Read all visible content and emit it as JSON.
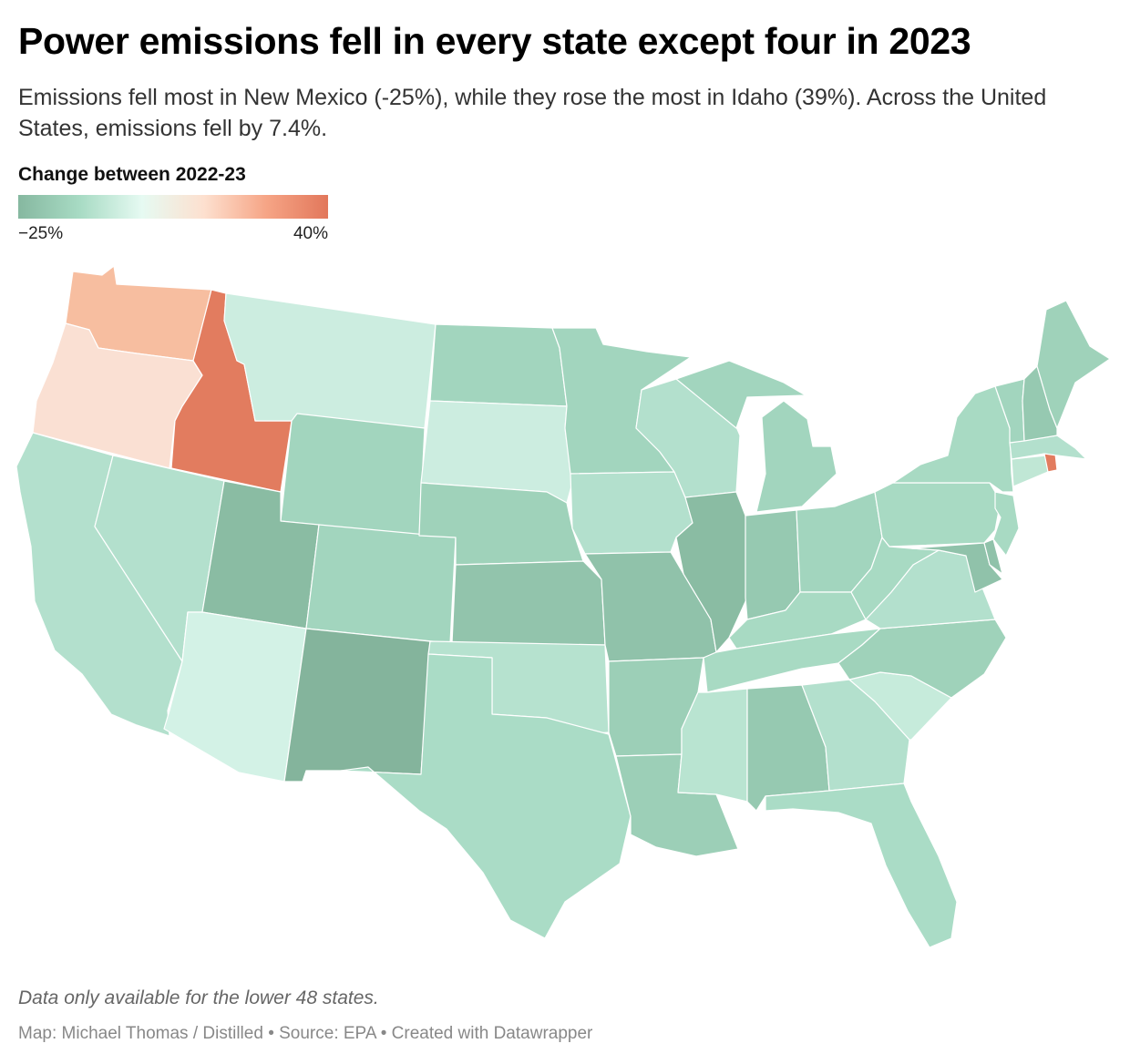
{
  "header": {
    "title": "Power emissions fell in every state except four in 2023",
    "subtitle": "Emissions fell most in New Mexico (-25%), while they rose the most in Idaho (39%). Across the United States, emissions fell by 7.4%."
  },
  "legend": {
    "title": "Change between 2022-23",
    "min_label": "−25%",
    "max_label": "40%",
    "min_value": -25,
    "max_value": 40,
    "colors": [
      "#86b8a0",
      "#a8dbc4",
      "#e6faf2",
      "#fde0cf",
      "#f6a586",
      "#e2775b"
    ]
  },
  "map": {
    "states": [
      {
        "id": "WA",
        "name": "Washington",
        "color": "#f7bea0"
      },
      {
        "id": "OR",
        "name": "Oregon",
        "color": "#fae0d3"
      },
      {
        "id": "CA",
        "name": "California",
        "color": "#b3e0cd"
      },
      {
        "id": "ID",
        "name": "Idaho",
        "color": "#e27c5f"
      },
      {
        "id": "NV",
        "name": "Nevada",
        "color": "#b3e0cd"
      },
      {
        "id": "MT",
        "name": "Montana",
        "color": "#ccede0"
      },
      {
        "id": "WY",
        "name": "Wyoming",
        "color": "#a2d5be"
      },
      {
        "id": "UT",
        "name": "Utah",
        "color": "#8abca3"
      },
      {
        "id": "AZ",
        "name": "Arizona",
        "color": "#d3f2e6"
      },
      {
        "id": "CO",
        "name": "Colorado",
        "color": "#a2d5be"
      },
      {
        "id": "NM",
        "name": "New Mexico",
        "color": "#84b49c"
      },
      {
        "id": "ND",
        "name": "North Dakota",
        "color": "#a2d5be"
      },
      {
        "id": "SD",
        "name": "South Dakota",
        "color": "#ccede0"
      },
      {
        "id": "NE",
        "name": "Nebraska",
        "color": "#9fd2ba"
      },
      {
        "id": "KS",
        "name": "Kansas",
        "color": "#92c4ac"
      },
      {
        "id": "OK",
        "name": "Oklahoma",
        "color": "#b6e2cf"
      },
      {
        "id": "TX",
        "name": "Texas",
        "color": "#aadcc6"
      },
      {
        "id": "MN",
        "name": "Minnesota",
        "color": "#a2d5be"
      },
      {
        "id": "IA",
        "name": "Iowa",
        "color": "#b3e0cd"
      },
      {
        "id": "MO",
        "name": "Missouri",
        "color": "#90c2aa"
      },
      {
        "id": "AR",
        "name": "Arkansas",
        "color": "#9ccfb7"
      },
      {
        "id": "LA",
        "name": "Louisiana",
        "color": "#9ccfb7"
      },
      {
        "id": "WI",
        "name": "Wisconsin",
        "color": "#b3e0cd"
      },
      {
        "id": "IL",
        "name": "Illinois",
        "color": "#8abca3"
      },
      {
        "id": "MI",
        "name": "Michigan",
        "color": "#a2d5be"
      },
      {
        "id": "IN",
        "name": "Indiana",
        "color": "#96c9b1"
      },
      {
        "id": "OH",
        "name": "Ohio",
        "color": "#a2d5be"
      },
      {
        "id": "KY",
        "name": "Kentucky",
        "color": "#a8dac3"
      },
      {
        "id": "TN",
        "name": "Tennessee",
        "color": "#a8dac3"
      },
      {
        "id": "MS",
        "name": "Mississippi",
        "color": "#b9e4d1"
      },
      {
        "id": "AL",
        "name": "Alabama",
        "color": "#96c9b1"
      },
      {
        "id": "GA",
        "name": "Georgia",
        "color": "#b3e0cd"
      },
      {
        "id": "FL",
        "name": "Florida",
        "color": "#aadcc6"
      },
      {
        "id": "SC",
        "name": "South Carolina",
        "color": "#c6ebdb"
      },
      {
        "id": "NC",
        "name": "North Carolina",
        "color": "#9fd2ba"
      },
      {
        "id": "VA",
        "name": "Virginia",
        "color": "#b3e0cd"
      },
      {
        "id": "WV",
        "name": "West Virginia",
        "color": "#a8dac3"
      },
      {
        "id": "PA",
        "name": "Pennsylvania",
        "color": "#a8dac3"
      },
      {
        "id": "NY",
        "name": "New York",
        "color": "#a8dac3"
      },
      {
        "id": "MD",
        "name": "Maryland",
        "color": "#90c2aa"
      },
      {
        "id": "DE",
        "name": "Delaware",
        "color": "#90c2aa"
      },
      {
        "id": "NJ",
        "name": "New Jersey",
        "color": "#a8dac3"
      },
      {
        "id": "CT",
        "name": "Connecticut",
        "color": "#c0e7d5"
      },
      {
        "id": "RI",
        "name": "Rhode Island",
        "color": "#e27c5f"
      },
      {
        "id": "MA",
        "name": "Massachusetts",
        "color": "#b3e0cd"
      },
      {
        "id": "VT",
        "name": "Vermont",
        "color": "#a2d5be"
      },
      {
        "id": "NH",
        "name": "New Hampshire",
        "color": "#96c9b1"
      },
      {
        "id": "ME",
        "name": "Maine",
        "color": "#9fd2ba"
      }
    ]
  },
  "footer": {
    "note": "Data only available for the lower 48 states.",
    "credit": "Map: Michael Thomas / Distilled • Source: EPA • Created with Datawrapper"
  }
}
